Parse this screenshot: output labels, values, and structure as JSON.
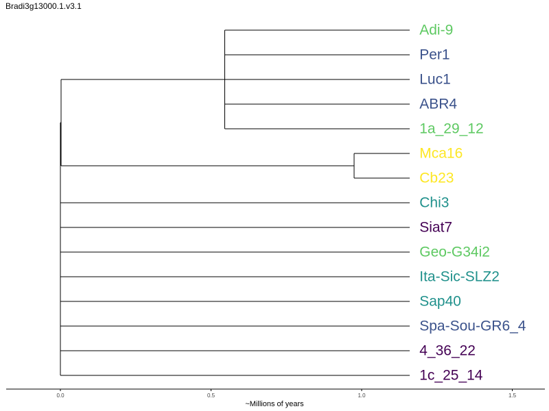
{
  "title": "Bradi3g13000.1.v3.1",
  "chart_data": {
    "type": "dendrogram",
    "xlabel": "~Millions of years",
    "xlim": [
      0.0,
      1.5
    ],
    "xticks": [
      {
        "value": 0.0,
        "label": "0.0"
      },
      {
        "value": 0.5,
        "label": "0.5"
      },
      {
        "value": 1.0,
        "label": "1.0"
      },
      {
        "value": 1.5,
        "label": "1.5"
      }
    ],
    "tips_x": 1.16,
    "leaves": [
      {
        "name": "Adi-9",
        "color": "#5ec962"
      },
      {
        "name": "Per1",
        "color": "#3b528b"
      },
      {
        "name": "Luc1",
        "color": "#3b528b"
      },
      {
        "name": "ABR4",
        "color": "#3b528b"
      },
      {
        "name": "1a_29_12",
        "color": "#5ec962"
      },
      {
        "name": "Mca16",
        "color": "#fde725"
      },
      {
        "name": "Cb23",
        "color": "#fde725"
      },
      {
        "name": "Chi3",
        "color": "#21918c"
      },
      {
        "name": "Siat7",
        "color": "#440154"
      },
      {
        "name": "Geo-G34i2",
        "color": "#5ec962"
      },
      {
        "name": "Ita-Sic-SLZ2",
        "color": "#21918c"
      },
      {
        "name": "Sap40",
        "color": "#21918c"
      },
      {
        "name": "Spa-Sou-GR6_4",
        "color": "#3b528b"
      },
      {
        "name": "4_36_22",
        "color": "#440154"
      },
      {
        "name": "1c_25_14",
        "color": "#440154"
      }
    ],
    "clades": [
      {
        "members": [
          "Adi-9",
          "Per1",
          "Luc1",
          "ABR4",
          "1a_29_12"
        ],
        "node_x": 0.545
      },
      {
        "members": [
          "Mca16",
          "Cb23"
        ],
        "node_x": 0.975
      },
      {
        "members": [
          "Adi-9",
          "Per1",
          "Luc1",
          "ABR4",
          "1a_29_12",
          "Mca16",
          "Cb23"
        ],
        "node_x": 0.002
      },
      {
        "members": [
          "Adi-9",
          "Per1",
          "Luc1",
          "ABR4",
          "1a_29_12",
          "Mca16",
          "Cb23",
          "Chi3",
          "Siat7",
          "Geo-G34i2",
          "Ita-Sic-SLZ2",
          "Sap40",
          "Spa-Sou-GR6_4",
          "4_36_22",
          "1c_25_14"
        ],
        "node_x": 0.0
      }
    ]
  }
}
